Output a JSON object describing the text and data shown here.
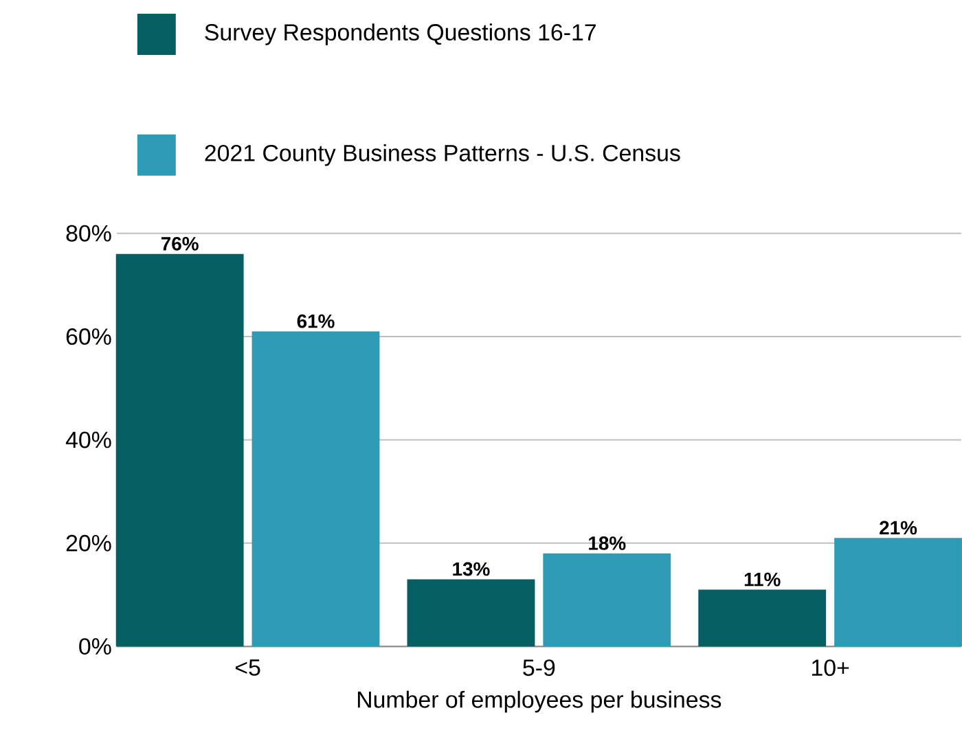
{
  "chart_data": {
    "type": "bar",
    "categories": [
      "<5",
      "5-9",
      "10+"
    ],
    "xlabel": "Number of employees per business",
    "series": [
      {
        "name": "Survey Respondents Questions 16-17",
        "color": "#055f63",
        "values": [
          76,
          13,
          11
        ],
        "value_labels": [
          "76%",
          "13%",
          "11%"
        ]
      },
      {
        "name": "2021 County Business Patterns - U.S. Census",
        "color": "#2e9bb6",
        "values": [
          61,
          18,
          21
        ],
        "value_labels": [
          "61%",
          "18%",
          "21%"
        ]
      }
    ],
    "ylim": [
      0,
      80
    ],
    "yticks": [
      {
        "value": 0,
        "label": "0%"
      },
      {
        "value": 20,
        "label": "20%"
      },
      {
        "value": 40,
        "label": "40%"
      },
      {
        "value": 60,
        "label": "60%"
      },
      {
        "value": 80,
        "label": "80%"
      }
    ],
    "grid": "y",
    "legend": "top"
  }
}
